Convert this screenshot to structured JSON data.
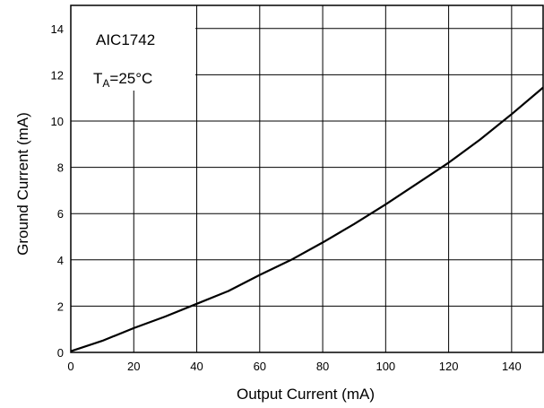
{
  "chart_data": {
    "type": "line",
    "title": "",
    "xlabel": "Output Current (mA)",
    "ylabel": "Ground Current (mA)",
    "xlim": [
      0,
      150
    ],
    "ylim": [
      0,
      15
    ],
    "xticks": [
      0,
      20,
      40,
      60,
      80,
      100,
      120,
      140
    ],
    "yticks": [
      0,
      2,
      4,
      6,
      8,
      10,
      12,
      14
    ],
    "grid": true,
    "annotations": {
      "part": "AIC1742",
      "temp_prefix": "T",
      "temp_sub": "A",
      "temp_value": "=25°C"
    },
    "series": [
      {
        "x": [
          0,
          10,
          20,
          30,
          40,
          50,
          60,
          70,
          80,
          90,
          100,
          110,
          120,
          130,
          140,
          150
        ],
        "y": [
          0.05,
          0.5,
          1.05,
          1.55,
          2.1,
          2.65,
          3.35,
          4.0,
          4.75,
          5.55,
          6.4,
          7.3,
          8.2,
          9.2,
          10.3,
          11.45
        ]
      }
    ]
  }
}
